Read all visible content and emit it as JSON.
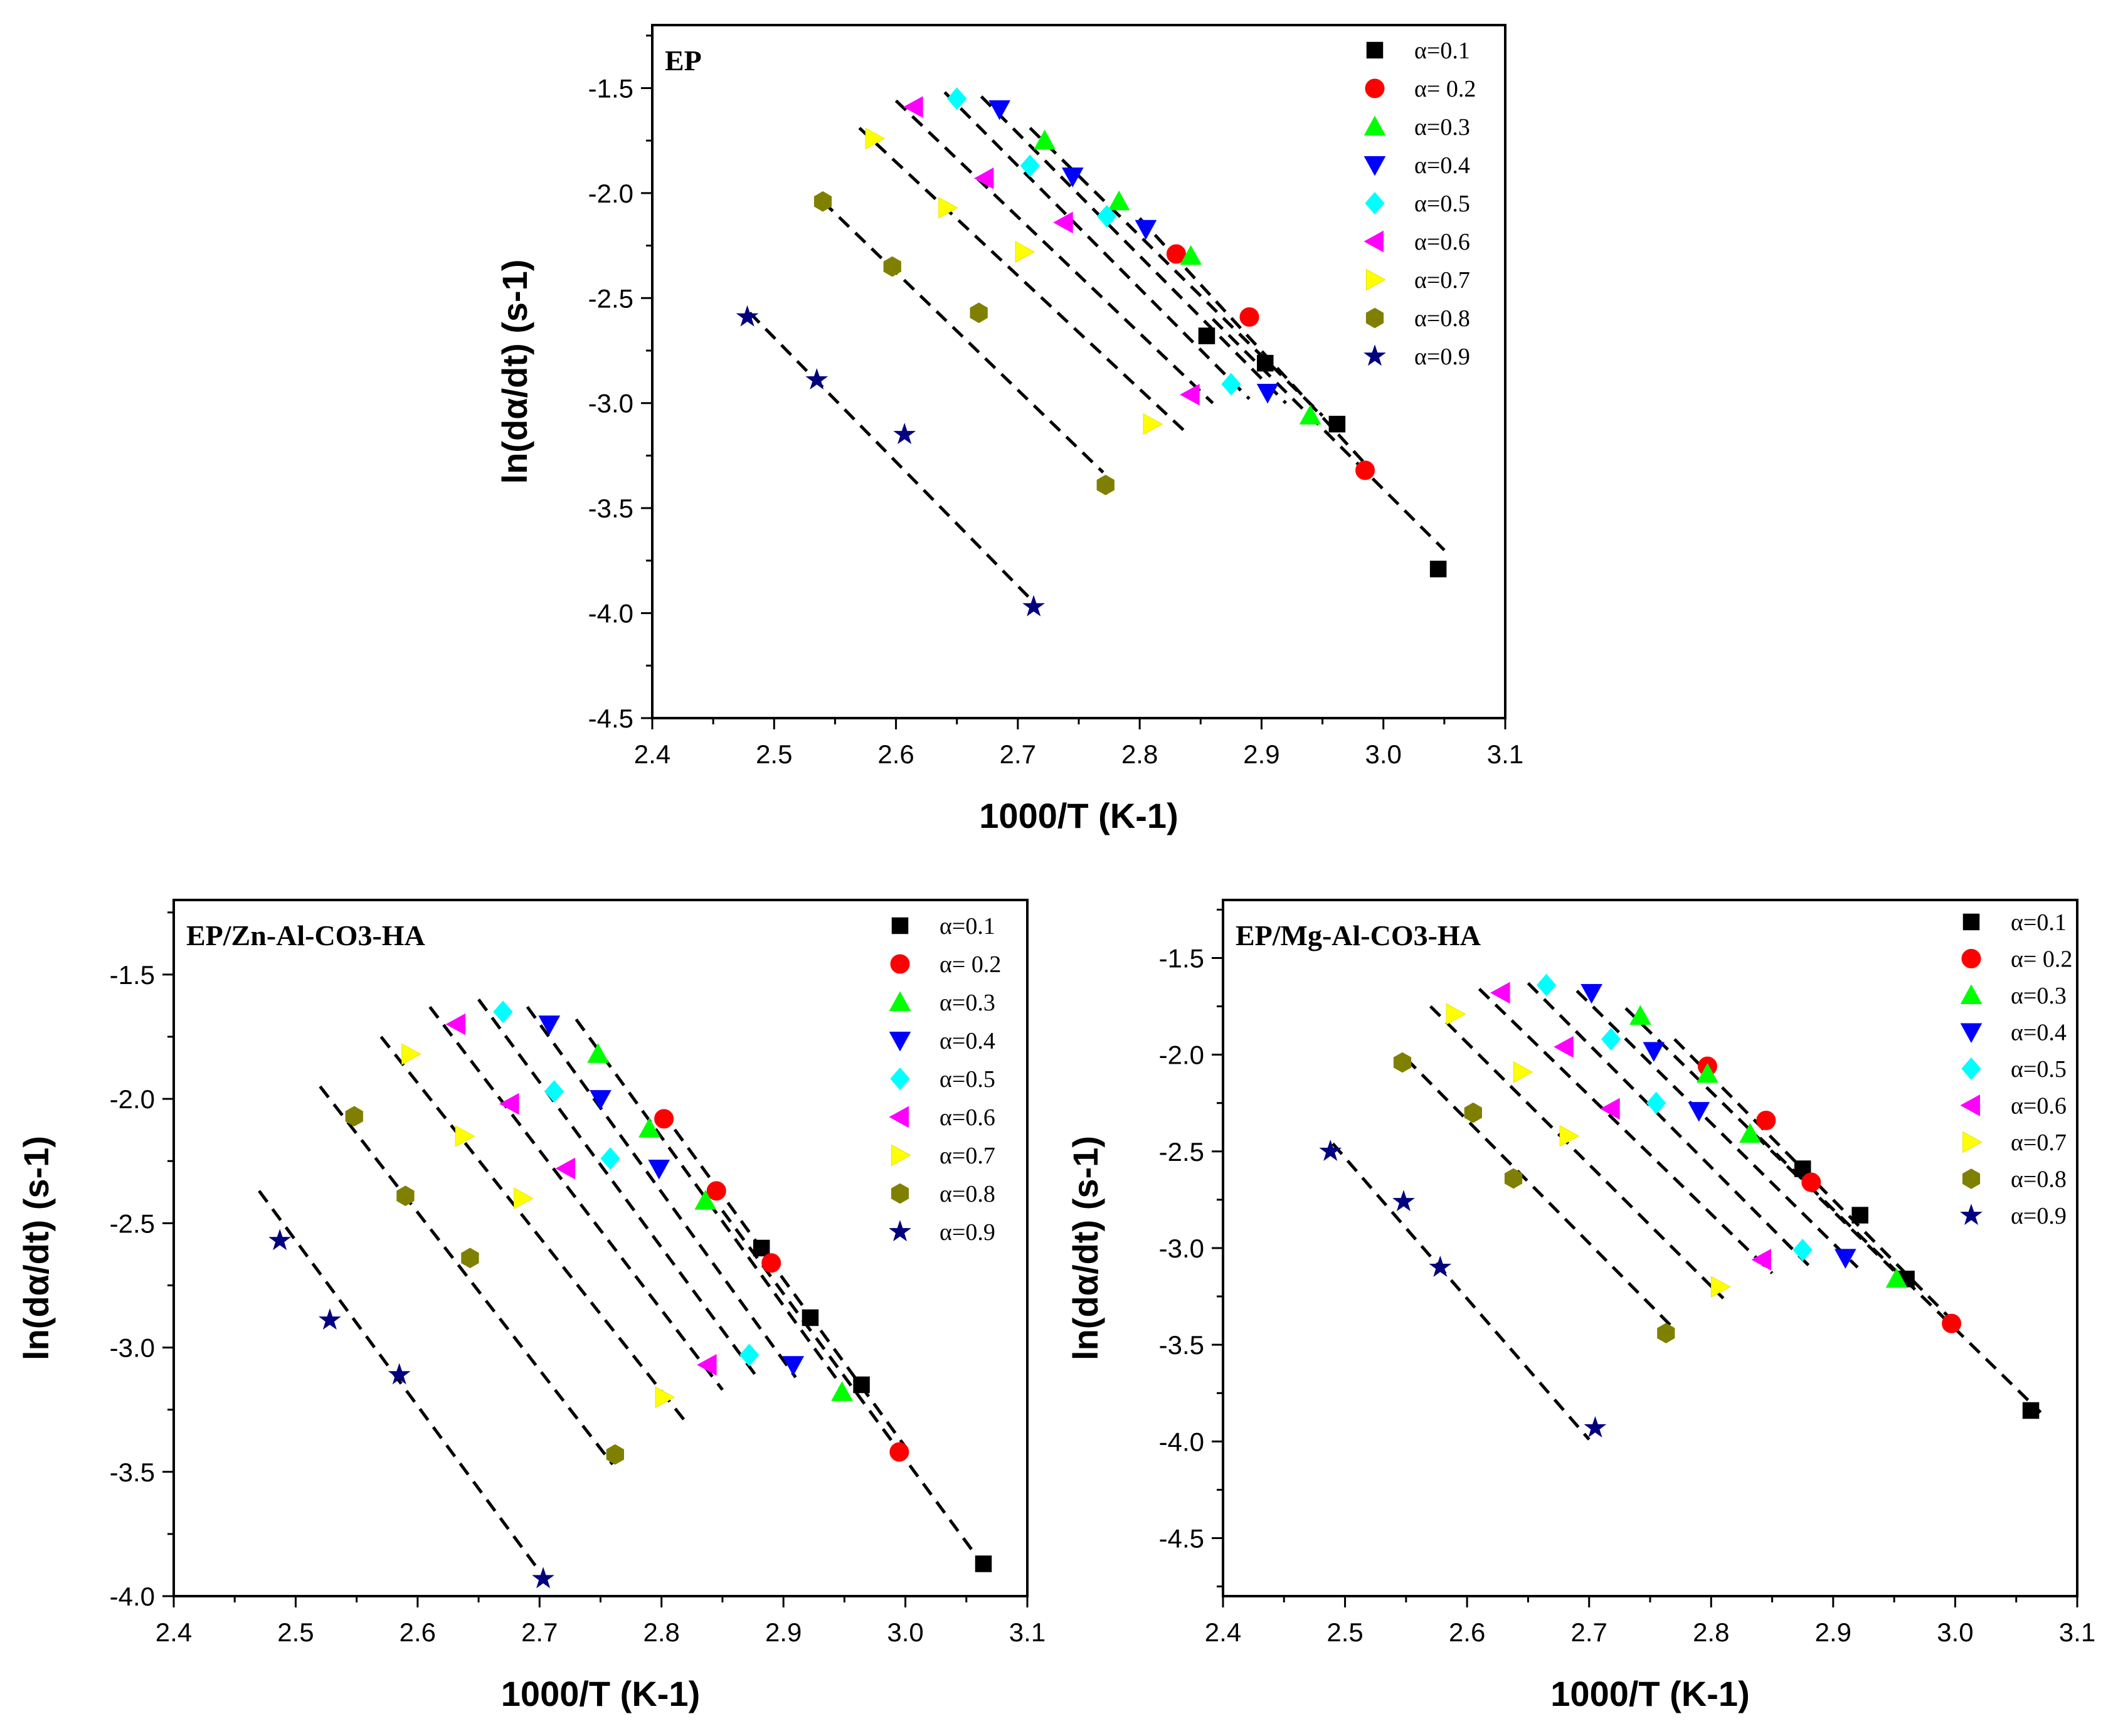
{
  "chart_data": [
    {
      "type": "scatter",
      "title": "EP",
      "xlabel": "1000/T (K-1)",
      "ylabel": "ln(dα/dt) (s-1)",
      "xlim": [
        2.4,
        3.1
      ],
      "ylim": [
        -4.5,
        -1.2
      ],
      "xticks": [
        "2.4",
        "2.5",
        "2.6",
        "2.7",
        "2.8",
        "2.9",
        "3.0",
        "3.1"
      ],
      "yticks": [
        "-1.5",
        "-2.0",
        "-2.5",
        "-3.0",
        "-3.5",
        "-4.0",
        "-4.5"
      ],
      "legend_position": "top-right",
      "series": [
        {
          "name": "α=0.1",
          "marker": "square",
          "color": "#000000",
          "points": [
            [
              2.855,
              -2.68
            ],
            [
              2.903,
              -2.81
            ],
            [
              2.962,
              -3.1
            ],
            [
              3.045,
              -3.79
            ]
          ],
          "fit": [
            [
              2.86,
              -2.6
            ],
            [
              3.05,
              -3.7
            ]
          ]
        },
        {
          "name": "α= 0.2",
          "marker": "circle",
          "color": "#ff0000",
          "points": [
            [
              2.83,
              -2.29
            ],
            [
              2.89,
              -2.59
            ],
            [
              2.985,
              -3.32
            ]
          ],
          "fit": [
            [
              2.8,
              -2.12
            ],
            [
              2.99,
              -3.32
            ]
          ]
        },
        {
          "name": "α=0.3",
          "marker": "triangle-up",
          "color": "#00ff00",
          "points": [
            [
              2.722,
              -1.75
            ],
            [
              2.783,
              -2.04
            ],
            [
              2.842,
              -2.3
            ],
            [
              2.94,
              -3.06
            ]
          ],
          "fit": [
            [
              2.71,
              -1.69
            ],
            [
              2.95,
              -3.06
            ]
          ]
        },
        {
          "name": "α=0.4",
          "marker": "triangle-down",
          "color": "#0000ff",
          "points": [
            [
              2.685,
              -1.6
            ],
            [
              2.745,
              -1.92
            ],
            [
              2.805,
              -2.17
            ],
            [
              2.905,
              -2.95
            ]
          ],
          "fit": [
            [
              2.67,
              -1.54
            ],
            [
              2.92,
              -3.0
            ]
          ]
        },
        {
          "name": "α=0.5",
          "marker": "diamond",
          "color": "#00ffff",
          "points": [
            [
              2.65,
              -1.55
            ],
            [
              2.71,
              -1.87
            ],
            [
              2.773,
              -2.11
            ],
            [
              2.875,
              -2.91
            ]
          ],
          "fit": [
            [
              2.64,
              -1.52
            ],
            [
              2.89,
              -2.98
            ]
          ]
        },
        {
          "name": "α=0.6",
          "marker": "triangle-left",
          "color": "#ff00ff",
          "points": [
            [
              2.615,
              -1.59
            ],
            [
              2.673,
              -1.93
            ],
            [
              2.738,
              -2.14
            ],
            [
              2.842,
              -2.96
            ]
          ],
          "fit": [
            [
              2.6,
              -1.56
            ],
            [
              2.86,
              -3.0
            ]
          ]
        },
        {
          "name": "α=0.7",
          "marker": "triangle-right",
          "color": "#ffff00",
          "points": [
            [
              2.582,
              -1.74
            ],
            [
              2.642,
              -2.07
            ],
            [
              2.705,
              -2.28
            ],
            [
              2.81,
              -3.1
            ]
          ],
          "fit": [
            [
              2.57,
              -1.69
            ],
            [
              2.84,
              -3.15
            ]
          ]
        },
        {
          "name": "α=0.8",
          "marker": "hexagon",
          "color": "#808000",
          "points": [
            [
              2.54,
              -2.04
            ],
            [
              2.597,
              -2.35
            ],
            [
              2.668,
              -2.57
            ],
            [
              2.772,
              -3.39
            ]
          ],
          "fit": [
            [
              2.54,
              -2.04
            ],
            [
              2.77,
              -3.33
            ]
          ]
        },
        {
          "name": "α=0.9",
          "marker": "star",
          "color": "#000080",
          "points": [
            [
              2.478,
              -2.59
            ],
            [
              2.535,
              -2.89
            ],
            [
              2.607,
              -3.15
            ],
            [
              2.713,
              -3.97
            ]
          ],
          "fit": [
            [
              2.48,
              -2.57
            ],
            [
              2.71,
              -3.93
            ]
          ]
        }
      ]
    },
    {
      "type": "scatter",
      "title": "EP/Zn-Al-CO3-HA",
      "xlabel": "1000/T (K-1)",
      "ylabel": "ln(dα/dt) (s-1)",
      "xlim": [
        2.4,
        3.1
      ],
      "ylim": [
        -4.0,
        -1.2
      ],
      "xticks": [
        "2.4",
        "2.5",
        "2.6",
        "2.7",
        "2.8",
        "2.9",
        "3.0",
        "3.1"
      ],
      "yticks": [
        "-1.5",
        "-2.0",
        "-2.5",
        "-3.0",
        "-3.5",
        "-4.0"
      ],
      "legend_position": "top-right",
      "series": [
        {
          "name": "α=0.1",
          "marker": "square",
          "color": "#000000",
          "points": [
            [
              2.882,
              -2.6
            ],
            [
              2.922,
              -2.88
            ],
            [
              2.964,
              -3.15
            ],
            [
              3.064,
              -3.87
            ]
          ],
          "fit": [
            [
              2.85,
              -2.45
            ],
            [
              3.06,
              -3.85
            ]
          ]
        },
        {
          "name": "α= 0.2",
          "marker": "circle",
          "color": "#ff0000",
          "points": [
            [
              2.802,
              -2.08
            ],
            [
              2.845,
              -2.37
            ],
            [
              2.89,
              -2.66
            ],
            [
              2.995,
              -3.42
            ]
          ],
          "fit": [
            [
              2.8,
              -2.05
            ],
            [
              3.0,
              -3.4
            ]
          ]
        },
        {
          "name": "α=0.3",
          "marker": "triangle-up",
          "color": "#00ff00",
          "points": [
            [
              2.748,
              -1.82
            ],
            [
              2.79,
              -2.12
            ],
            [
              2.836,
              -2.41
            ],
            [
              2.948,
              -3.18
            ]
          ],
          "fit": [
            [
              2.73,
              -1.68
            ],
            [
              2.95,
              -3.17
            ]
          ]
        },
        {
          "name": "α=0.4",
          "marker": "triangle-down",
          "color": "#0000ff",
          "points": [
            [
              2.708,
              -1.7
            ],
            [
              2.75,
              -2.0
            ],
            [
              2.798,
              -2.28
            ],
            [
              2.908,
              -3.07
            ]
          ],
          "fit": [
            [
              2.69,
              -1.63
            ],
            [
              2.91,
              -3.12
            ]
          ]
        },
        {
          "name": "α=0.5",
          "marker": "diamond",
          "color": "#00ffff",
          "points": [
            [
              2.67,
              -1.65
            ],
            [
              2.712,
              -1.97
            ],
            [
              2.758,
              -2.24
            ],
            [
              2.872,
              -3.03
            ]
          ],
          "fit": [
            [
              2.65,
              -1.6
            ],
            [
              2.88,
              -3.13
            ]
          ]
        },
        {
          "name": "α=0.6",
          "marker": "triangle-left",
          "color": "#ff00ff",
          "points": [
            [
              2.632,
              -1.7
            ],
            [
              2.676,
              -2.02
            ],
            [
              2.722,
              -2.28
            ],
            [
              2.838,
              -3.07
            ]
          ],
          "fit": [
            [
              2.61,
              -1.63
            ],
            [
              2.85,
              -3.17
            ]
          ]
        },
        {
          "name": "α=0.7",
          "marker": "triangle-right",
          "color": "#ffff00",
          "points": [
            [
              2.594,
              -1.82
            ],
            [
              2.638,
              -2.15
            ],
            [
              2.686,
              -2.4
            ],
            [
              2.802,
              -3.2
            ]
          ],
          "fit": [
            [
              2.57,
              -1.75
            ],
            [
              2.82,
              -3.3
            ]
          ]
        },
        {
          "name": "α=0.8",
          "marker": "hexagon",
          "color": "#808000",
          "points": [
            [
              2.548,
              -2.07
            ],
            [
              2.59,
              -2.39
            ],
            [
              2.643,
              -2.64
            ],
            [
              2.762,
              -3.43
            ]
          ],
          "fit": [
            [
              2.52,
              -1.95
            ],
            [
              2.76,
              -3.47
            ]
          ]
        },
        {
          "name": "α=0.9",
          "marker": "star",
          "color": "#000080",
          "points": [
            [
              2.487,
              -2.57
            ],
            [
              2.528,
              -2.89
            ],
            [
              2.585,
              -3.11
            ],
            [
              2.703,
              -3.93
            ]
          ],
          "fit": [
            [
              2.47,
              -2.37
            ],
            [
              2.7,
              -3.9
            ]
          ]
        }
      ]
    },
    {
      "type": "scatter",
      "title": "EP/Mg-Al-CO3-HA",
      "xlabel": "1000/T (K-1)",
      "ylabel": "ln(dα/dt) (s-1)",
      "xlim": [
        2.4,
        3.1
      ],
      "ylim": [
        -4.8,
        -1.2
      ],
      "xticks": [
        "2.4",
        "2.5",
        "2.6",
        "2.7",
        "2.8",
        "2.9",
        "3.0",
        "3.1"
      ],
      "yticks": [
        "-1.5",
        "-2.0",
        "-2.5",
        "-3.0",
        "-3.5",
        "-4.0",
        "-4.5"
      ],
      "legend_position": "top-right",
      "series": [
        {
          "name": "α=0.1",
          "marker": "square",
          "color": "#000000",
          "points": [
            [
              2.875,
              -2.59
            ],
            [
              2.922,
              -2.83
            ],
            [
              2.96,
              -3.16
            ],
            [
              3.062,
              -3.84
            ]
          ],
          "fit": [
            [
              2.84,
              -2.43
            ],
            [
              3.07,
              -3.85
            ]
          ]
        },
        {
          "name": "α= 0.2",
          "marker": "circle",
          "color": "#ff0000",
          "points": [
            [
              2.797,
              -2.06
            ],
            [
              2.845,
              -2.34
            ],
            [
              2.882,
              -2.66
            ],
            [
              2.997,
              -3.39
            ]
          ],
          "fit": [
            [
              2.77,
              -1.92
            ],
            [
              3.0,
              -3.39
            ]
          ]
        },
        {
          "name": "α=0.3",
          "marker": "triangle-up",
          "color": "#00ff00",
          "points": [
            [
              2.742,
              -1.8
            ],
            [
              2.797,
              -2.1
            ],
            [
              2.832,
              -2.41
            ],
            [
              2.952,
              -3.16
            ]
          ],
          "fit": [
            [
              2.73,
              -1.76
            ],
            [
              2.96,
              -3.18
            ]
          ]
        },
        {
          "name": "α=0.4",
          "marker": "triangle-down",
          "color": "#0000ff",
          "points": [
            [
              2.702,
              -1.68
            ],
            [
              2.753,
              -1.98
            ],
            [
              2.79,
              -2.29
            ],
            [
              2.91,
              -3.05
            ]
          ],
          "fit": [
            [
              2.69,
              -1.67
            ],
            [
              2.92,
              -3.1
            ]
          ]
        },
        {
          "name": "α=0.5",
          "marker": "diamond",
          "color": "#00ffff",
          "points": [
            [
              2.665,
              -1.64
            ],
            [
              2.718,
              -1.92
            ],
            [
              2.755,
              -2.25
            ],
            [
              2.875,
              -3.01
            ]
          ],
          "fit": [
            [
              2.65,
              -1.63
            ],
            [
              2.88,
              -3.09
            ]
          ]
        },
        {
          "name": "α=0.6",
          "marker": "triangle-left",
          "color": "#ff00ff",
          "points": [
            [
              2.628,
              -1.68
            ],
            [
              2.68,
              -1.96
            ],
            [
              2.718,
              -2.28
            ],
            [
              2.842,
              -3.06
            ]
          ],
          "fit": [
            [
              2.61,
              -1.66
            ],
            [
              2.85,
              -3.13
            ]
          ]
        },
        {
          "name": "α=0.7",
          "marker": "triangle-right",
          "color": "#ffff00",
          "points": [
            [
              2.59,
              -1.79
            ],
            [
              2.645,
              -2.09
            ],
            [
              2.683,
              -2.42
            ],
            [
              2.807,
              -3.2
            ]
          ],
          "fit": [
            [
              2.57,
              -1.75
            ],
            [
              2.81,
              -3.26
            ]
          ]
        },
        {
          "name": "α=0.8",
          "marker": "hexagon",
          "color": "#808000",
          "points": [
            [
              2.547,
              -2.04
            ],
            [
              2.605,
              -2.3
            ],
            [
              2.638,
              -2.64
            ],
            [
              2.763,
              -3.44
            ]
          ],
          "fit": [
            [
              2.55,
              -2.02
            ],
            [
              2.77,
              -3.42
            ]
          ]
        },
        {
          "name": "α=0.9",
          "marker": "star",
          "color": "#000080",
          "points": [
            [
              2.488,
              -2.5
            ],
            [
              2.548,
              -2.76
            ],
            [
              2.578,
              -3.1
            ],
            [
              2.705,
              -3.93
            ]
          ],
          "fit": [
            [
              2.49,
              -2.46
            ],
            [
              2.7,
              -3.99
            ]
          ]
        }
      ]
    }
  ]
}
